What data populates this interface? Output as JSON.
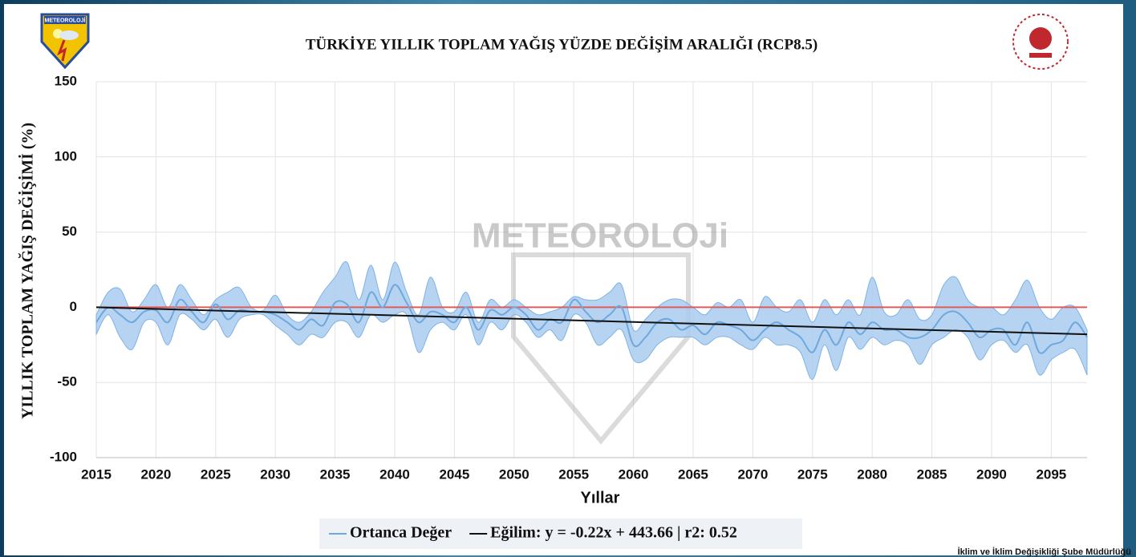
{
  "chart_data": {
    "type": "band-line",
    "title": "TÜRKİYE YILLIK TOPLAM YAĞIŞ YÜZDE DEĞİŞİM ARALIĞI (RCP8.5)",
    "y_label": "YILLIK TOPLAM YAĞIŞ DEĞİŞİMİ (%)",
    "x_label": "Yıllar",
    "watermark": "METEOROLOJi",
    "footer": "İklim ve İklim Değişikliği Şube Müdürlüğü",
    "logo_text": "METEOROLOJİ",
    "xlim": [
      2015,
      2098
    ],
    "xticks": [
      2015,
      2020,
      2025,
      2030,
      2035,
      2040,
      2045,
      2050,
      2055,
      2060,
      2065,
      2070,
      2075,
      2080,
      2085,
      2090,
      2095
    ],
    "ylim": [
      -100,
      150
    ],
    "yticks": [
      -100,
      -50,
      0,
      50,
      100,
      150
    ],
    "grid": true,
    "reference_line": {
      "value": 0,
      "color": "#e05a5a"
    },
    "x": [
      2015,
      2016,
      2017,
      2018,
      2019,
      2020,
      2021,
      2022,
      2023,
      2024,
      2025,
      2026,
      2027,
      2028,
      2029,
      2030,
      2031,
      2032,
      2033,
      2034,
      2035,
      2036,
      2037,
      2038,
      2039,
      2040,
      2041,
      2042,
      2043,
      2044,
      2045,
      2046,
      2047,
      2048,
      2049,
      2050,
      2051,
      2052,
      2053,
      2054,
      2055,
      2056,
      2057,
      2058,
      2059,
      2060,
      2061,
      2062,
      2063,
      2064,
      2065,
      2066,
      2067,
      2068,
      2069,
      2070,
      2071,
      2072,
      2073,
      2074,
      2075,
      2076,
      2077,
      2078,
      2079,
      2080,
      2081,
      2082,
      2083,
      2084,
      2085,
      2086,
      2087,
      2088,
      2089,
      2090,
      2091,
      2092,
      2093,
      2094,
      2095,
      2096,
      2097,
      2098
    ],
    "band": {
      "color": "#a9cdf0",
      "upper": [
        -5,
        10,
        12,
        -3,
        5,
        15,
        0,
        15,
        5,
        -5,
        5,
        10,
        13,
        0,
        -2,
        8,
        -5,
        -10,
        -3,
        10,
        20,
        30,
        5,
        28,
        5,
        30,
        10,
        -5,
        20,
        0,
        -3,
        10,
        -10,
        5,
        0,
        5,
        0,
        -5,
        -3,
        0,
        7,
        5,
        5,
        10,
        15,
        -15,
        -8,
        0,
        5,
        5,
        0,
        -5,
        3,
        0,
        5,
        -10,
        7,
        0,
        -3,
        5,
        -10,
        5,
        -5,
        5,
        -5,
        20,
        -3,
        -5,
        5,
        -8,
        -5,
        15,
        20,
        5,
        0,
        0,
        -5,
        5,
        18,
        0,
        -8,
        0,
        0,
        -15
      ],
      "lower": [
        -18,
        -5,
        -20,
        -28,
        -10,
        -10,
        -25,
        -5,
        -8,
        -15,
        -8,
        -20,
        -8,
        -5,
        -5,
        -12,
        -18,
        -25,
        -18,
        -20,
        -10,
        -10,
        -20,
        -5,
        -10,
        -5,
        -5,
        -30,
        -15,
        -10,
        -15,
        -5,
        -25,
        -10,
        -15,
        -5,
        -10,
        -20,
        -15,
        -22,
        -5,
        -10,
        -25,
        -20,
        -15,
        -35,
        -35,
        -25,
        -20,
        -20,
        -20,
        -25,
        -20,
        -20,
        -25,
        -28,
        -20,
        -25,
        -25,
        -30,
        -48,
        -25,
        -42,
        -20,
        -28,
        -20,
        -25,
        -22,
        -25,
        -38,
        -25,
        -20,
        -15,
        -20,
        -35,
        -25,
        -22,
        -30,
        -25,
        -45,
        -35,
        -30,
        -28,
        -45
      ]
    },
    "series": [
      {
        "name": "Ortanca Değer",
        "color": "#6fa8dc",
        "values": [
          -10,
          0,
          -5,
          -10,
          -3,
          -2,
          -10,
          5,
          -3,
          -10,
          2,
          -8,
          -2,
          -3,
          -3,
          -5,
          -10,
          -15,
          -8,
          -12,
          3,
          2,
          -10,
          10,
          0,
          15,
          3,
          -10,
          -3,
          -5,
          -10,
          0,
          -15,
          -2,
          -5,
          0,
          -5,
          -15,
          -8,
          -10,
          5,
          -3,
          -10,
          -5,
          0,
          -25,
          -20,
          -10,
          -8,
          -15,
          -12,
          -18,
          -10,
          -12,
          -15,
          -22,
          -15,
          -10,
          -15,
          -20,
          -30,
          -15,
          -25,
          -10,
          -18,
          -10,
          -15,
          -15,
          -20,
          -20,
          -15,
          -5,
          -3,
          -10,
          -20,
          -15,
          -15,
          -25,
          -10,
          -30,
          -25,
          -22,
          -10,
          -20
        ]
      },
      {
        "name": "Eğilim: y = -0.22x + 443.66 | r2: 0.52",
        "color": "#111111",
        "x": [
          2015,
          2098
        ],
        "values": [
          0,
          -18
        ]
      }
    ]
  }
}
